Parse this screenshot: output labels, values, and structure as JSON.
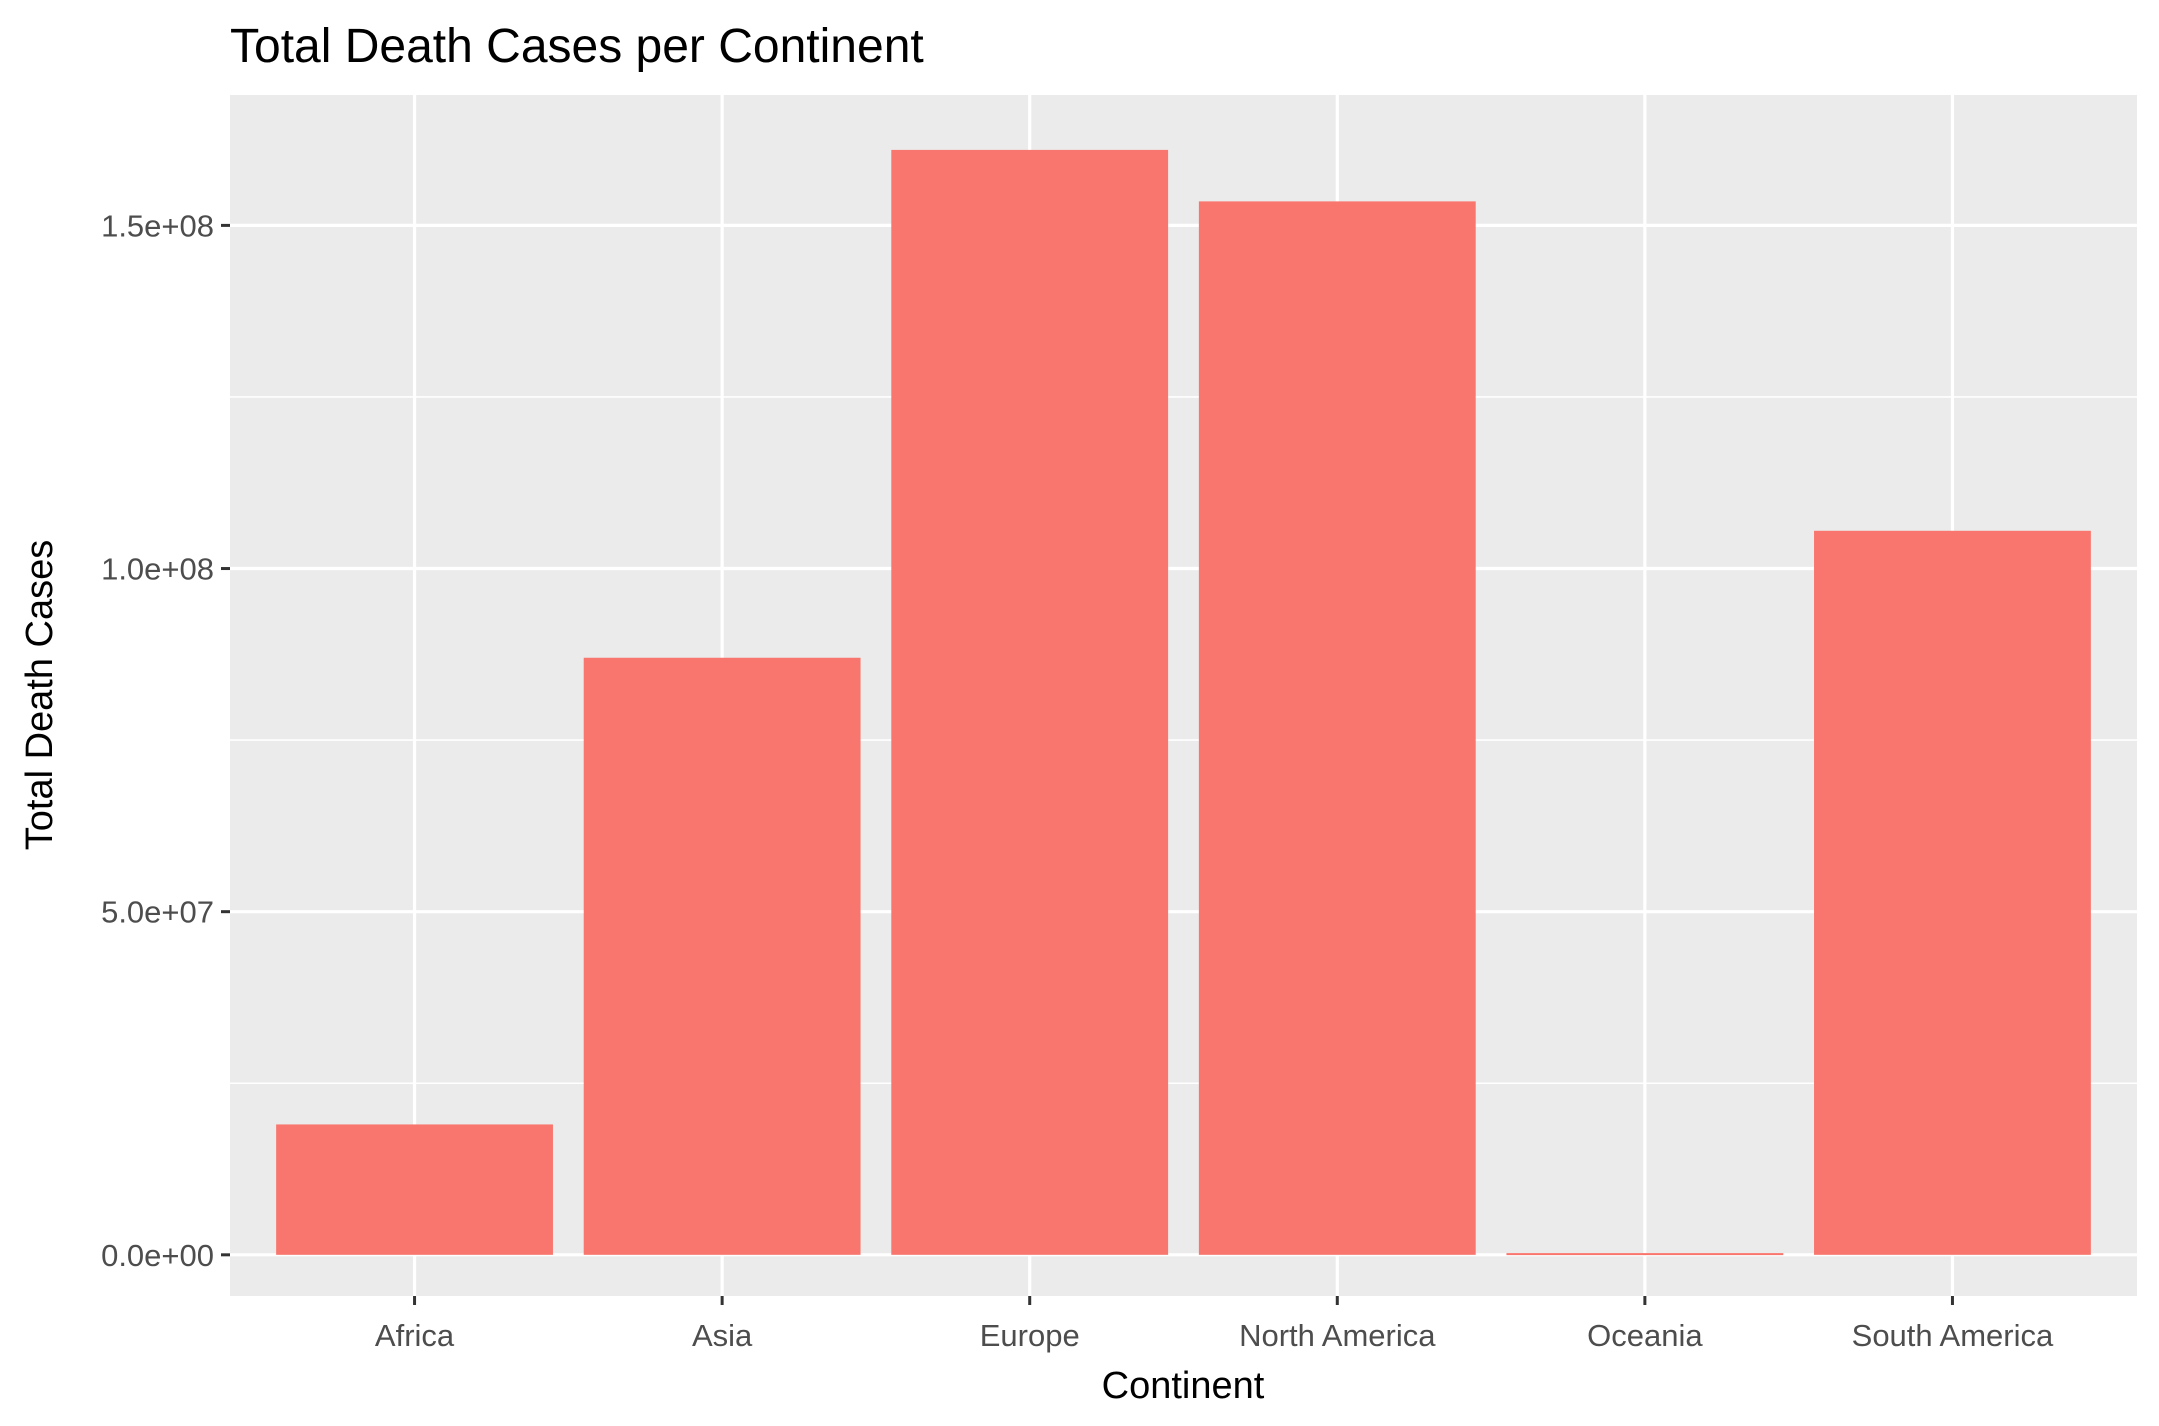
{
  "chart_data": {
    "type": "bar",
    "title": "Total Death Cases per Continent",
    "xlabel": "Continent",
    "ylabel": "Total Death Cases",
    "categories": [
      "Africa",
      "Asia",
      "Europe",
      "North America",
      "Oceania",
      "South America"
    ],
    "values": [
      19000000,
      87000000,
      161000000,
      153500000,
      250000,
      105500000
    ],
    "ylim": [
      -6000000,
      169000000
    ],
    "yticks": [
      0,
      50000000,
      100000000,
      150000000
    ],
    "ytick_labels": [
      "0.0e+00",
      "5.0e+07",
      "1.0e+08",
      "1.5e+08"
    ],
    "grid": true,
    "legend": "none",
    "colors": {
      "bar": "#f8766d",
      "panel": "#ebebeb",
      "gridline": "#ffffff",
      "tick_text": "#4d4d4d",
      "tick_mark": "#333333"
    }
  }
}
